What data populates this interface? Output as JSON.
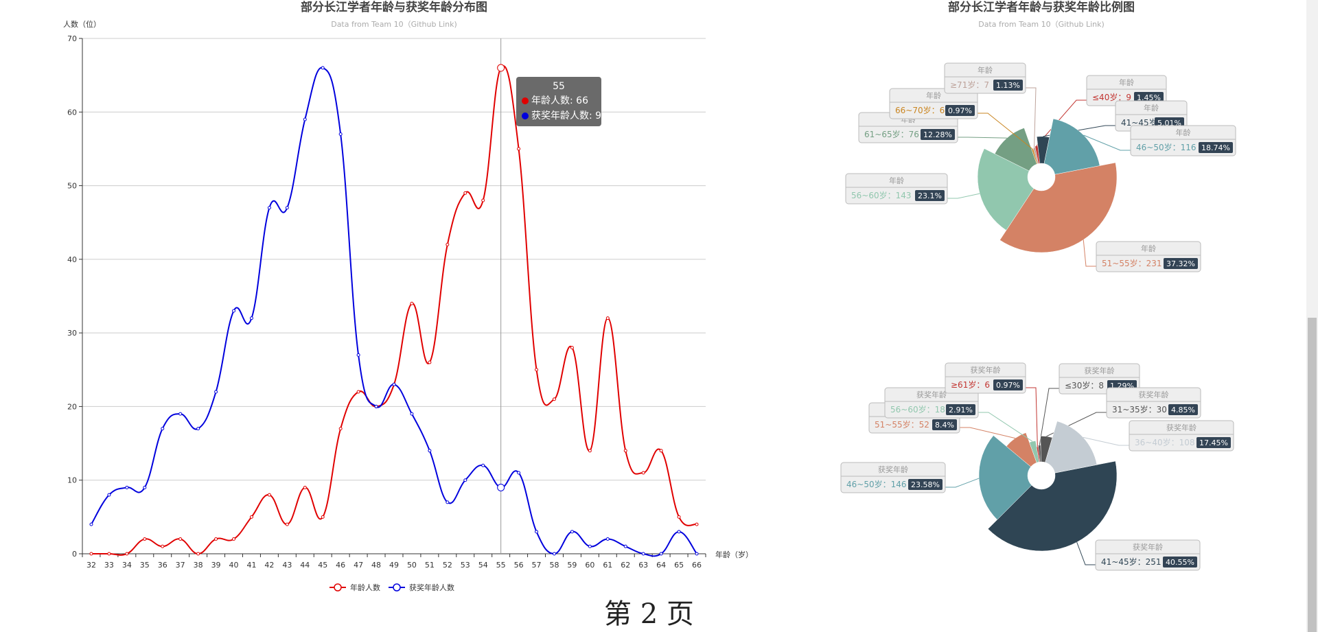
{
  "page_number": "第 2 页",
  "colors": {
    "age_line": "#e00000",
    "award_line": "#0000dd",
    "pie_palette_1": [
      "#d48265",
      "#91c7ae",
      "#749f83",
      "#ca8622",
      "#bda29a",
      "#c23531",
      "#2f4554",
      "#61a0a8"
    ],
    "label_bg": "#eeeeee",
    "percent_bg": "#334455"
  },
  "tooltip": {
    "title": "55",
    "rows": [
      {
        "text": "年龄人数: 66",
        "color": "#e00000"
      },
      {
        "text": "获奖年龄人数: 9",
        "color": "#0000dd"
      }
    ]
  },
  "chart_data": [
    {
      "type": "line",
      "title": "部分长江学者年龄与获奖年龄分布图",
      "subtitle": "Data from Team 10（Github Link)",
      "xlabel": "年龄（岁）",
      "ylabel": "人数（位）",
      "ylim": [
        0,
        70
      ],
      "yticks": [
        0,
        10,
        20,
        30,
        40,
        50,
        60,
        70
      ],
      "grid": true,
      "legend": "bottom-center",
      "x": [
        32,
        33,
        34,
        35,
        36,
        37,
        38,
        39,
        40,
        41,
        42,
        43,
        44,
        45,
        46,
        47,
        48,
        49,
        50,
        51,
        52,
        53,
        54,
        55,
        56,
        57,
        58,
        59,
        60,
        61,
        62,
        63,
        64,
        65,
        66
      ],
      "series": [
        {
          "name": "年龄人数",
          "values": [
            0,
            0,
            0,
            2,
            1,
            2,
            0,
            2,
            2,
            5,
            8,
            4,
            9,
            5,
            17,
            22,
            20,
            23,
            34,
            26,
            42,
            49,
            48,
            66,
            55,
            25,
            21,
            28,
            14,
            32,
            14,
            11,
            14,
            5,
            4
          ]
        },
        {
          "name": "获奖年龄人数",
          "values": [
            4,
            8,
            9,
            9,
            17,
            19,
            17,
            22,
            33,
            32,
            47,
            47,
            59,
            66,
            57,
            27,
            20,
            23,
            19,
            14,
            7,
            10,
            12,
            9,
            11,
            3,
            0,
            3,
            1,
            2,
            1,
            0,
            0,
            3,
            0
          ]
        }
      ],
      "highlight_x": 55
    },
    {
      "type": "pie",
      "variant": "rose",
      "title": "部分长江学者年龄与获奖年龄比例图",
      "subtitle": "Data from Team 10（Github Link)",
      "series_name": "年龄",
      "slices": [
        {
          "label": "51~55岁",
          "value": 231,
          "percent": "37.32%",
          "color": "#d48265"
        },
        {
          "label": "56~60岁",
          "value": 143,
          "percent": "23.1%",
          "color": "#91c7ae"
        },
        {
          "label": "61~65岁",
          "value": 76,
          "percent": "12.28%",
          "color": "#749f83"
        },
        {
          "label": "66~70岁",
          "value": 6,
          "percent": "0.97%",
          "color": "#ca8622"
        },
        {
          "label": "≥71岁",
          "value": 7,
          "percent": "1.13%",
          "color": "#bda29a"
        },
        {
          "label": "≤40岁",
          "value": 9,
          "percent": "1.45%",
          "color": "#c23531"
        },
        {
          "label": "41~45岁",
          "value": 31,
          "percent": "5.01%",
          "color": "#2f4554"
        },
        {
          "label": "46~50岁",
          "value": 116,
          "percent": "18.74%",
          "color": "#61a0a8"
        }
      ]
    },
    {
      "type": "pie",
      "variant": "rose",
      "series_name": "获奖年龄",
      "slices": [
        {
          "label": "41~45岁",
          "value": 251,
          "percent": "40.55%",
          "color": "#2f4554"
        },
        {
          "label": "46~50岁",
          "value": 146,
          "percent": "23.58%",
          "color": "#61a0a8"
        },
        {
          "label": "51~55岁",
          "value": 52,
          "percent": "8.4%",
          "color": "#d48265"
        },
        {
          "label": "56~60岁",
          "value": 18,
          "percent": "2.91%",
          "color": "#91c7ae"
        },
        {
          "label": "≥61岁",
          "value": 6,
          "percent": "0.97%",
          "color": "#c23531"
        },
        {
          "label": "≤30岁",
          "value": 8,
          "percent": "1.29%",
          "color": "#555555"
        },
        {
          "label": "31~35岁",
          "value": 30,
          "percent": "4.85%",
          "color": "#555555"
        },
        {
          "label": "36~40岁",
          "value": 108,
          "percent": "17.45%",
          "color": "#c4ccd3"
        }
      ]
    }
  ]
}
